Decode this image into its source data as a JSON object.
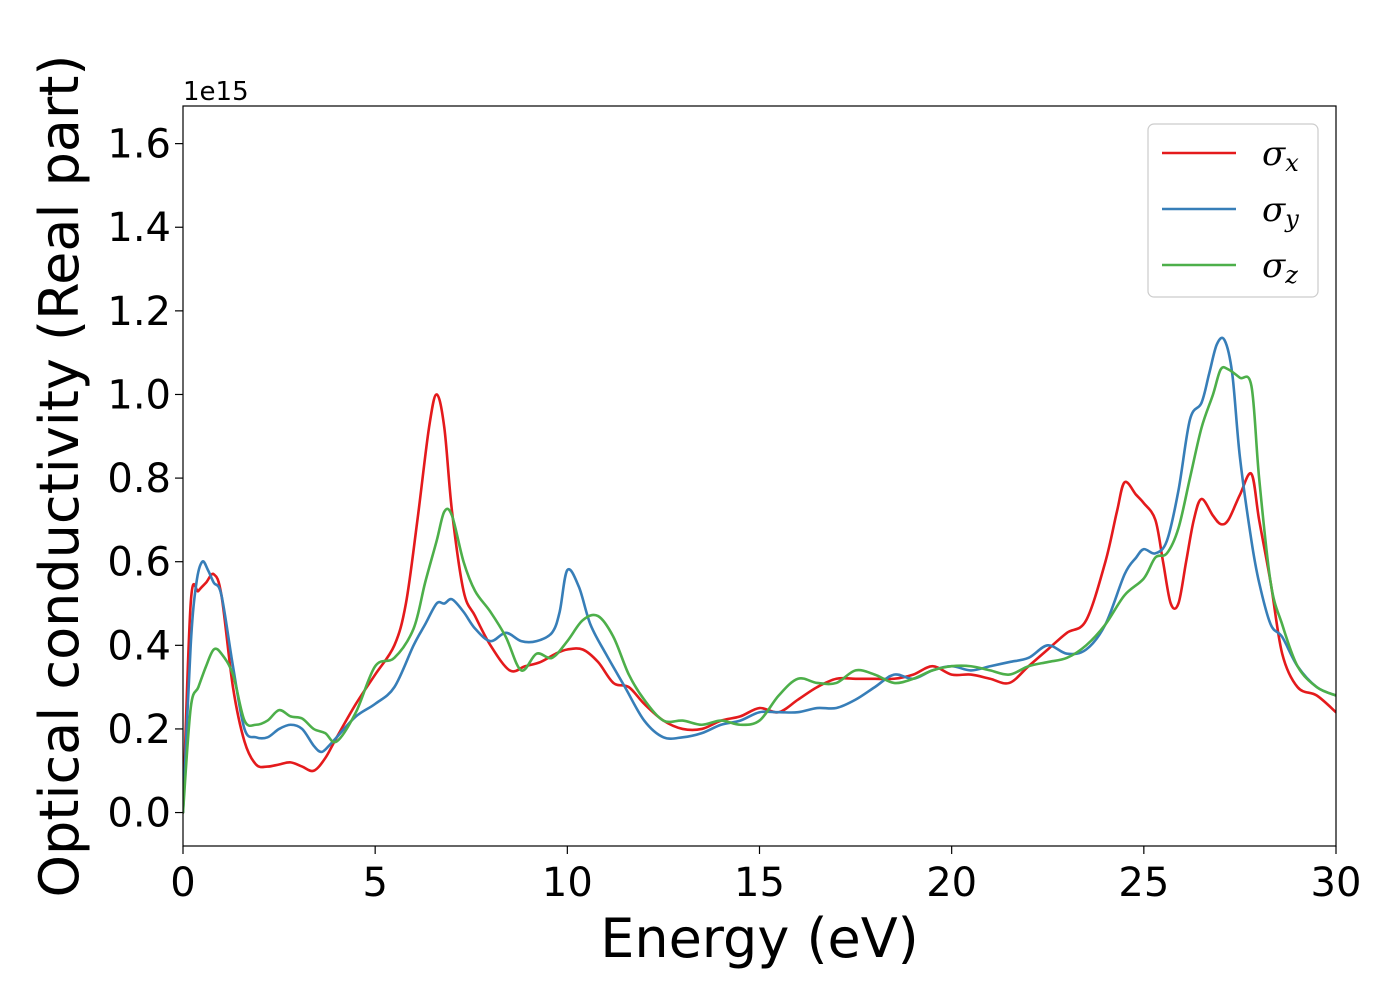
{
  "chart_data": {
    "type": "line",
    "xlabel": "Energy (eV)",
    "ylabel": "Optical conductivity (Real part)",
    "y_offset_label": "1e15",
    "xlim": [
      0,
      30
    ],
    "ylim": [
      -0.08,
      1.69
    ],
    "x_ticks": [
      0,
      5,
      10,
      15,
      20,
      25,
      30
    ],
    "y_ticks": [
      0.0,
      0.2,
      0.4,
      0.6,
      0.8,
      1.0,
      1.2,
      1.4,
      1.6
    ],
    "x_tick_labels": [
      "0",
      "5",
      "10",
      "15",
      "20",
      "25",
      "30"
    ],
    "y_tick_labels": [
      "0.0",
      "0.2",
      "0.4",
      "0.6",
      "0.8",
      "1.0",
      "1.2",
      "1.4",
      "1.6"
    ],
    "grid": false,
    "legend_position": "top-right",
    "series": [
      {
        "name": "σx",
        "symbol": "σ",
        "subscript": "x",
        "color": "#e41a1c",
        "x": [
          0,
          0.2,
          0.4,
          0.6,
          0.8,
          1.0,
          1.3,
          1.6,
          1.9,
          2.2,
          2.5,
          2.8,
          3.1,
          3.4,
          3.7,
          4.0,
          4.5,
          5.0,
          5.5,
          5.8,
          6.1,
          6.4,
          6.6,
          6.8,
          7.0,
          7.3,
          7.6,
          8.0,
          8.5,
          8.9,
          9.3,
          9.7,
          10.0,
          10.4,
          10.8,
          11.2,
          11.6,
          12.0,
          12.5,
          13.0,
          13.5,
          14.0,
          14.5,
          15.0,
          15.5,
          16.0,
          16.5,
          17.0,
          17.5,
          18.0,
          18.5,
          19.0,
          19.5,
          20.0,
          20.5,
          21.0,
          21.5,
          22.0,
          22.5,
          23.0,
          23.5,
          24.0,
          24.3,
          24.5,
          24.8,
          25.0,
          25.3,
          25.5,
          25.7,
          25.9,
          26.1,
          26.3,
          26.5,
          26.8,
          27.0,
          27.2,
          27.5,
          27.8,
          28.0,
          28.3,
          28.6,
          29.0,
          29.5,
          30.0
        ],
        "y": [
          0.0,
          0.5,
          0.53,
          0.55,
          0.57,
          0.52,
          0.3,
          0.17,
          0.115,
          0.11,
          0.115,
          0.12,
          0.11,
          0.1,
          0.13,
          0.18,
          0.26,
          0.33,
          0.4,
          0.5,
          0.7,
          0.92,
          1.0,
          0.92,
          0.72,
          0.53,
          0.47,
          0.4,
          0.34,
          0.35,
          0.36,
          0.38,
          0.39,
          0.39,
          0.36,
          0.31,
          0.3,
          0.26,
          0.22,
          0.2,
          0.2,
          0.22,
          0.23,
          0.25,
          0.24,
          0.27,
          0.3,
          0.32,
          0.32,
          0.32,
          0.32,
          0.33,
          0.35,
          0.33,
          0.33,
          0.32,
          0.31,
          0.35,
          0.39,
          0.43,
          0.46,
          0.6,
          0.72,
          0.79,
          0.76,
          0.74,
          0.7,
          0.6,
          0.5,
          0.5,
          0.6,
          0.7,
          0.75,
          0.71,
          0.69,
          0.7,
          0.76,
          0.81,
          0.7,
          0.55,
          0.38,
          0.3,
          0.28,
          0.24
        ]
      },
      {
        "name": "σy",
        "symbol": "σ",
        "subscript": "y",
        "color": "#377eb8",
        "x": [
          0,
          0.2,
          0.35,
          0.5,
          0.65,
          0.8,
          1.0,
          1.3,
          1.6,
          1.9,
          2.2,
          2.5,
          2.8,
          3.1,
          3.4,
          3.6,
          3.8,
          4.0,
          4.5,
          5.0,
          5.5,
          6.0,
          6.3,
          6.6,
          6.8,
          7.0,
          7.3,
          7.6,
          8.0,
          8.4,
          8.8,
          9.2,
          9.6,
          9.8,
          10.0,
          10.3,
          10.6,
          11.0,
          11.5,
          12.0,
          12.5,
          13.0,
          13.5,
          14.0,
          14.5,
          15.0,
          15.5,
          16.0,
          16.5,
          17.0,
          17.5,
          18.0,
          18.5,
          19.0,
          19.5,
          20.0,
          20.5,
          21.0,
          21.5,
          22.0,
          22.5,
          23.0,
          23.5,
          24.0,
          24.5,
          24.8,
          25.0,
          25.3,
          25.6,
          25.9,
          26.2,
          26.5,
          26.7,
          26.9,
          27.1,
          27.3,
          27.5,
          27.8,
          28.0,
          28.3,
          28.6,
          29.0,
          29.5,
          30.0
        ],
        "y": [
          0.0,
          0.4,
          0.55,
          0.6,
          0.58,
          0.55,
          0.52,
          0.35,
          0.2,
          0.18,
          0.18,
          0.2,
          0.21,
          0.2,
          0.16,
          0.145,
          0.16,
          0.18,
          0.23,
          0.26,
          0.3,
          0.4,
          0.45,
          0.5,
          0.5,
          0.51,
          0.48,
          0.44,
          0.41,
          0.43,
          0.41,
          0.41,
          0.43,
          0.48,
          0.58,
          0.54,
          0.45,
          0.38,
          0.3,
          0.22,
          0.18,
          0.18,
          0.19,
          0.21,
          0.22,
          0.24,
          0.24,
          0.24,
          0.25,
          0.25,
          0.27,
          0.3,
          0.33,
          0.32,
          0.34,
          0.35,
          0.34,
          0.35,
          0.36,
          0.37,
          0.4,
          0.38,
          0.39,
          0.45,
          0.57,
          0.61,
          0.63,
          0.62,
          0.65,
          0.77,
          0.94,
          0.98,
          1.05,
          1.12,
          1.13,
          1.05,
          0.85,
          0.65,
          0.55,
          0.45,
          0.42,
          0.35,
          0.3,
          0.28
        ]
      },
      {
        "name": "σz",
        "symbol": "σ",
        "subscript": "z",
        "color": "#4daf4a",
        "x": [
          0,
          0.2,
          0.4,
          0.6,
          0.8,
          1.0,
          1.3,
          1.6,
          1.9,
          2.2,
          2.5,
          2.8,
          3.1,
          3.4,
          3.7,
          4.0,
          4.5,
          5.0,
          5.5,
          6.0,
          6.3,
          6.6,
          6.8,
          7.0,
          7.3,
          7.6,
          8.0,
          8.4,
          8.8,
          9.2,
          9.6,
          10.0,
          10.4,
          10.8,
          11.2,
          11.6,
          12.0,
          12.5,
          13.0,
          13.5,
          14.0,
          14.5,
          15.0,
          15.5,
          16.0,
          16.5,
          17.0,
          17.5,
          18.0,
          18.5,
          19.0,
          19.5,
          20.0,
          20.5,
          21.0,
          21.5,
          22.0,
          22.5,
          23.0,
          23.5,
          24.0,
          24.5,
          25.0,
          25.3,
          25.6,
          25.9,
          26.2,
          26.5,
          26.8,
          27.0,
          27.2,
          27.5,
          27.8,
          28.0,
          28.3,
          28.6,
          29.0,
          29.5,
          30.0
        ],
        "y": [
          0.0,
          0.25,
          0.3,
          0.35,
          0.39,
          0.38,
          0.33,
          0.22,
          0.21,
          0.22,
          0.245,
          0.23,
          0.225,
          0.2,
          0.19,
          0.17,
          0.24,
          0.35,
          0.37,
          0.44,
          0.55,
          0.65,
          0.72,
          0.71,
          0.6,
          0.53,
          0.48,
          0.42,
          0.34,
          0.38,
          0.37,
          0.41,
          0.46,
          0.47,
          0.42,
          0.33,
          0.27,
          0.22,
          0.22,
          0.21,
          0.22,
          0.21,
          0.22,
          0.28,
          0.32,
          0.31,
          0.31,
          0.34,
          0.33,
          0.31,
          0.32,
          0.34,
          0.35,
          0.35,
          0.34,
          0.33,
          0.35,
          0.36,
          0.37,
          0.4,
          0.45,
          0.52,
          0.56,
          0.61,
          0.62,
          0.68,
          0.8,
          0.92,
          1.0,
          1.06,
          1.06,
          1.04,
          1.02,
          0.8,
          0.55,
          0.45,
          0.35,
          0.3,
          0.28
        ]
      }
    ]
  }
}
